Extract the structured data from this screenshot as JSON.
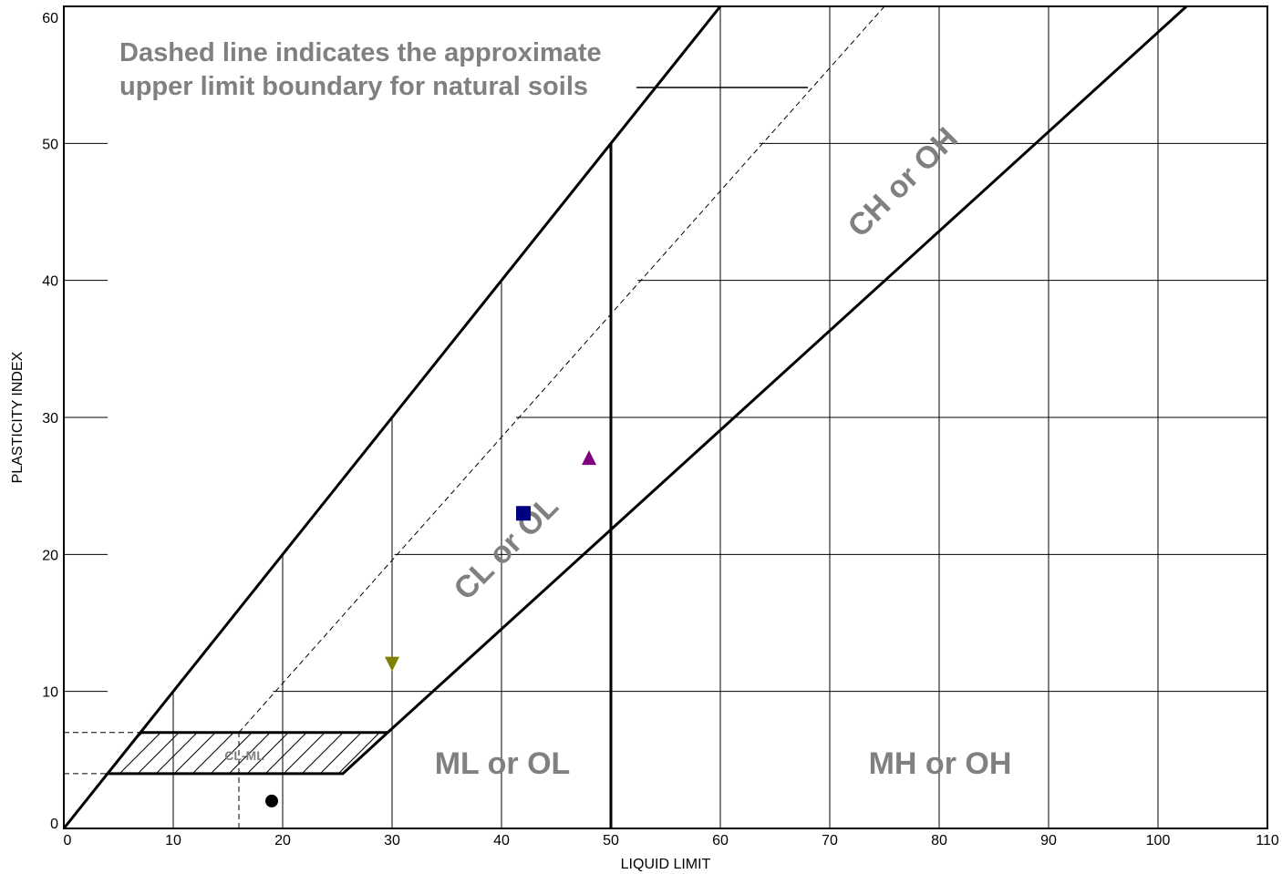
{
  "chart_data": {
    "type": "scatter",
    "title": "",
    "xlabel": "LIQUID LIMIT",
    "ylabel": "PLASTICITY INDEX",
    "xlim": [
      0,
      110
    ],
    "ylim": [
      0,
      60
    ],
    "x_ticks": [
      0,
      10,
      20,
      30,
      40,
      50,
      60,
      70,
      80,
      90,
      100,
      110
    ],
    "y_ticks": [
      0,
      10,
      20,
      30,
      40,
      50,
      60
    ],
    "grid": true,
    "points": [
      {
        "x": 19,
        "y": 2,
        "marker": "circle",
        "color": "#000000"
      },
      {
        "x": 42,
        "y": 23,
        "marker": "square",
        "color": "#000080"
      },
      {
        "x": 48,
        "y": 27,
        "marker": "triangle-up",
        "color": "#800080"
      },
      {
        "x": 30,
        "y": 12,
        "marker": "triangle-down",
        "color": "#808000"
      }
    ],
    "annotations": {
      "note_line1": "Dashed line indicates the approximate",
      "note_line2": "upper limit boundary for natural soils",
      "zone_cl_ol": "CL or OL",
      "zone_ch_oh": "CH or OH",
      "zone_ml_ol": "ML or OL",
      "zone_mh_oh": "MH or OH",
      "zone_cl_ml": "CL-ML"
    }
  }
}
